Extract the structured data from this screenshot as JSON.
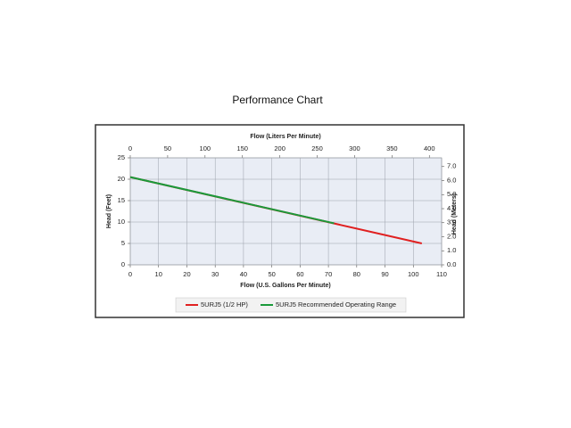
{
  "chart_data": {
    "type": "line",
    "title": "Performance Chart",
    "x_label": "Flow (U.S. Gallons Per Minute)",
    "x2_label": "Flow (Liters Per Minute)",
    "y_label": "Head (Feet)",
    "y2_label": "Head (Meters)",
    "xlim": [
      0,
      110
    ],
    "xticks": [
      0,
      10,
      20,
      30,
      40,
      50,
      60,
      70,
      80,
      90,
      100,
      110
    ],
    "x2lim": [
      0,
      416.4
    ],
    "x2ticks": [
      0,
      50,
      100,
      150,
      200,
      250,
      300,
      350,
      400
    ],
    "ylim": [
      0,
      25
    ],
    "yticks": [
      0,
      5,
      10,
      15,
      20,
      25
    ],
    "y2lim": [
      0,
      7.62
    ],
    "y2ticks": [
      {
        "value": 0,
        "label": "0.0"
      },
      {
        "value": 1,
        "label": "1.0"
      },
      {
        "value": 2,
        "label": "2.0"
      },
      {
        "value": 3,
        "label": "3.0"
      },
      {
        "value": 4,
        "label": "4.0"
      },
      {
        "value": 5,
        "label": "5.0"
      },
      {
        "value": 6,
        "label": "6.0"
      },
      {
        "value": 7,
        "label": "7.0"
      }
    ],
    "grid": true,
    "legend": "bottom",
    "series": [
      {
        "name": "5URJ5 (1/2 HP)",
        "color": "#e02020",
        "x": [
          0,
          103
        ],
        "values": [
          20.5,
          5.0
        ]
      },
      {
        "name": "5URJ5 Recommended Operating Range",
        "color": "#1a9a3a",
        "x": [
          0,
          72
        ],
        "values": [
          20.5,
          9.7
        ]
      }
    ]
  }
}
